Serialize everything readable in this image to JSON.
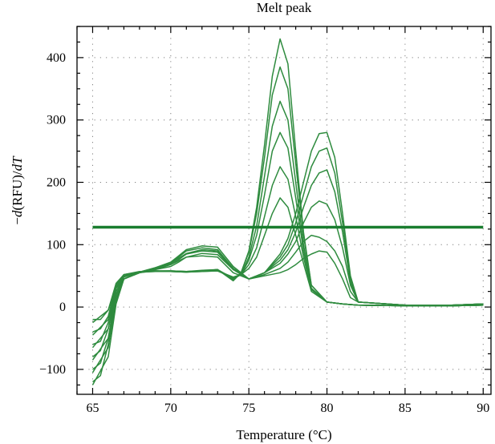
{
  "chart_data": {
    "type": "line",
    "title": "Melt peak",
    "xlabel": "Temperature (°C)",
    "ylabel_prefix": "−",
    "ylabel_d1": "d",
    "ylabel_mid": "(RFU)/",
    "ylabel_d2": "dT",
    "xlim": [
      64,
      90.5
    ],
    "ylim": [
      -140,
      450
    ],
    "x_ticks": [
      65,
      70,
      75,
      80,
      85,
      90
    ],
    "x_tick_labels": [
      "65",
      "70",
      "75",
      "80",
      "85",
      "90"
    ],
    "y_ticks": [
      -100,
      0,
      100,
      200,
      300,
      400
    ],
    "y_tick_labels": [
      "−100",
      "0",
      "100",
      "200",
      "300",
      "400"
    ],
    "grid": true,
    "line_color": "#2e8b3e",
    "threshold": {
      "y": 128,
      "x_range": [
        65,
        90
      ],
      "color": "#1a7d2f"
    },
    "series": [
      {
        "x": [
          65,
          65.5,
          66,
          66.5,
          67,
          68,
          69,
          70,
          71,
          72,
          73,
          74,
          74.5,
          75,
          75.5,
          76,
          76.5,
          77,
          77.5,
          78,
          78.5,
          79,
          80,
          81,
          82,
          85,
          88,
          90
        ],
        "y": [
          -120,
          -110,
          -60,
          20,
          45,
          55,
          58,
          57,
          56,
          58,
          60,
          42,
          55,
          90,
          160,
          260,
          370,
          430,
          390,
          250,
          120,
          35,
          8,
          5,
          3,
          2,
          2,
          3
        ]
      },
      {
        "x": [
          65,
          65.5,
          66,
          66.5,
          67,
          68,
          69,
          70,
          71,
          72,
          73,
          74,
          74.5,
          75,
          75.5,
          76,
          76.5,
          77,
          77.5,
          78,
          78.5,
          79,
          80,
          81,
          82,
          85,
          88,
          90
        ],
        "y": [
          -100,
          -90,
          -50,
          25,
          48,
          56,
          58,
          58,
          57,
          59,
          60,
          44,
          55,
          88,
          150,
          240,
          340,
          385,
          350,
          230,
          115,
          35,
          8,
          5,
          3,
          2,
          2,
          3
        ]
      },
      {
        "x": [
          65,
          65.5,
          66,
          66.5,
          67,
          68,
          69,
          70,
          71,
          72,
          73,
          74,
          74.5,
          75,
          75.5,
          76,
          76.5,
          77,
          77.5,
          78,
          78.5,
          79,
          80,
          81,
          82,
          85,
          88,
          90
        ],
        "y": [
          -80,
          -70,
          -35,
          30,
          50,
          56,
          58,
          58,
          57,
          58,
          60,
          45,
          52,
          80,
          130,
          210,
          290,
          330,
          300,
          200,
          100,
          30,
          8,
          5,
          3,
          2,
          2,
          3
        ]
      },
      {
        "x": [
          65,
          65.5,
          66,
          66.5,
          67,
          68,
          69,
          70,
          71,
          72,
          73,
          74,
          74.5,
          75,
          75.5,
          76,
          76.5,
          77,
          77.5,
          78,
          78.5,
          79,
          80,
          81,
          82,
          85,
          88,
          90
        ],
        "y": [
          -60,
          -55,
          -25,
          32,
          50,
          56,
          57,
          58,
          57,
          58,
          60,
          46,
          52,
          75,
          115,
          180,
          250,
          280,
          255,
          175,
          90,
          30,
          8,
          5,
          3,
          2,
          2,
          3
        ]
      },
      {
        "x": [
          65,
          65.5,
          66,
          66.5,
          67,
          68,
          69,
          70,
          71,
          72,
          73,
          74,
          74.5,
          75,
          75.5,
          76,
          76.5,
          77,
          77.5,
          78,
          78.5,
          79,
          80,
          81,
          82,
          85,
          88,
          90
        ],
        "y": [
          -40,
          -35,
          -15,
          35,
          52,
          56,
          57,
          57,
          56,
          57,
          58,
          47,
          52,
          68,
          95,
          145,
          195,
          225,
          205,
          145,
          80,
          28,
          8,
          5,
          3,
          2,
          2,
          3
        ]
      },
      {
        "x": [
          65,
          65.5,
          66,
          66.5,
          67,
          68,
          69,
          70,
          71,
          72,
          73,
          74,
          74.5,
          75,
          75.5,
          76,
          76.5,
          77,
          77.5,
          78,
          78.5,
          79,
          80,
          81,
          82,
          85,
          88,
          90
        ],
        "y": [
          -20,
          -20,
          -5,
          38,
          52,
          57,
          57,
          57,
          56,
          57,
          58,
          48,
          52,
          62,
          80,
          115,
          150,
          175,
          160,
          115,
          70,
          25,
          8,
          5,
          3,
          2,
          2,
          3
        ]
      },
      {
        "x": [
          65,
          66,
          66.5,
          67,
          68,
          69,
          70,
          70.5,
          71,
          72,
          73,
          74,
          75,
          76,
          77,
          77.5,
          78,
          78.5,
          79,
          79.5,
          80,
          80.5,
          81,
          81.5,
          82,
          85,
          88,
          90
        ],
        "y": [
          -25,
          -5,
          30,
          45,
          55,
          60,
          65,
          72,
          80,
          82,
          80,
          55,
          45,
          55,
          85,
          110,
          150,
          200,
          250,
          278,
          280,
          240,
          150,
          50,
          8,
          3,
          3,
          5
        ]
      },
      {
        "x": [
          65,
          66,
          66.5,
          67,
          68,
          69,
          70,
          70.5,
          71,
          72,
          73,
          74,
          75,
          76,
          77,
          77.5,
          78,
          78.5,
          79,
          79.5,
          80,
          80.5,
          81,
          81.5,
          82,
          85,
          88,
          90
        ],
        "y": [
          -45,
          -20,
          25,
          45,
          55,
          60,
          68,
          76,
          85,
          90,
          88,
          60,
          45,
          55,
          80,
          100,
          135,
          180,
          225,
          250,
          255,
          215,
          135,
          45,
          8,
          3,
          3,
          5
        ]
      },
      {
        "x": [
          65,
          66,
          66.5,
          67,
          68,
          69,
          70,
          70.5,
          71,
          72,
          73,
          74,
          75,
          76,
          77,
          77.5,
          78,
          78.5,
          79,
          79.5,
          80,
          80.5,
          81,
          81.5,
          82,
          85,
          88,
          90
        ],
        "y": [
          -65,
          -35,
          20,
          45,
          55,
          62,
          70,
          80,
          90,
          95,
          92,
          62,
          45,
          55,
          75,
          92,
          120,
          160,
          195,
          215,
          220,
          185,
          120,
          40,
          8,
          3,
          3,
          5
        ]
      },
      {
        "x": [
          65,
          66,
          66.5,
          67,
          68,
          69,
          70,
          70.5,
          71,
          72,
          73,
          74,
          75,
          76,
          77,
          77.5,
          78,
          78.5,
          79,
          79.5,
          80,
          80.5,
          81,
          81.5,
          82,
          85,
          88,
          90
        ],
        "y": [
          -85,
          -50,
          15,
          45,
          56,
          63,
          72,
          82,
          92,
          98,
          96,
          65,
          45,
          55,
          70,
          85,
          105,
          135,
          160,
          170,
          165,
          140,
          95,
          35,
          8,
          3,
          3,
          5
        ]
      },
      {
        "x": [
          65,
          66,
          66.5,
          67,
          68,
          69,
          70,
          70.5,
          71,
          72,
          73,
          74,
          75,
          76,
          77,
          77.5,
          78,
          78.5,
          79,
          79.5,
          80,
          80.5,
          81,
          81.5,
          82,
          85,
          88,
          90
        ],
        "y": [
          -105,
          -65,
          10,
          45,
          56,
          63,
          70,
          78,
          86,
          92,
          90,
          62,
          45,
          52,
          62,
          72,
          88,
          105,
          115,
          112,
          105,
          90,
          65,
          25,
          8,
          3,
          3,
          5
        ]
      },
      {
        "x": [
          65,
          66,
          66.5,
          67,
          68,
          69,
          70,
          70.5,
          71,
          72,
          73,
          74,
          75,
          76,
          77,
          77.5,
          78,
          78.5,
          79,
          79.5,
          80,
          80.5,
          81,
          81.5,
          82,
          85,
          88,
          90
        ],
        "y": [
          -125,
          -80,
          5,
          45,
          55,
          62,
          68,
          74,
          80,
          86,
          84,
          60,
          45,
          50,
          55,
          60,
          68,
          78,
          85,
          90,
          88,
          70,
          45,
          15,
          8,
          3,
          3,
          5
        ]
      }
    ]
  }
}
